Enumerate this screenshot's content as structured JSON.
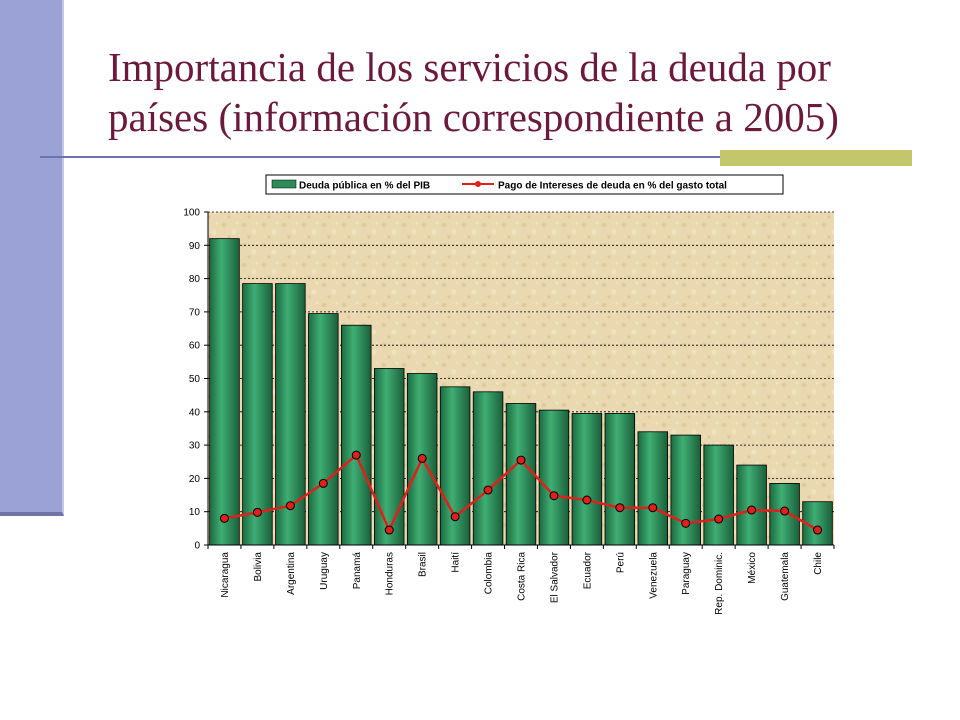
{
  "slide": {
    "title_line1": "Importancia de los servicios de la deuda por",
    "title_line2": "países (información correspondiente a 2005)"
  },
  "colors": {
    "title": "#6b1a3c",
    "left_bar": "#9ba3d6",
    "rule": "#6a73b0",
    "accent": "#c3c66a",
    "bar_fill": "#2e8b57",
    "line": "#e0201a",
    "plot_bg": "#e9d8b0"
  },
  "chart_data": {
    "type": "bar",
    "categories": [
      "Nicaragua",
      "Bolivia",
      "Argentina",
      "Uruguay",
      "Panamá",
      "Honduras",
      "Brasil",
      "Haití",
      "Colombia",
      "Costa Rica",
      "El Salvador",
      "Ecuador",
      "Perú",
      "Venezuela",
      "Paraguay",
      "Rep. Dominic.",
      "México",
      "Guatemala",
      "Chile"
    ],
    "series": [
      {
        "name": "Deuda pública en %  del PIB",
        "kind": "bar",
        "values": [
          92,
          78.5,
          78.5,
          69.5,
          66,
          53,
          51.5,
          47.5,
          46,
          42.5,
          40.5,
          39.5,
          39.5,
          34,
          33,
          30,
          24,
          18.5,
          13
        ]
      },
      {
        "name": "Pago de Intereses de deuda en %  del gasto total",
        "kind": "line",
        "values": [
          8,
          9.8,
          11.8,
          18.5,
          27,
          4.5,
          26,
          8.5,
          16.5,
          25.5,
          14.8,
          13.5,
          11.2,
          11.2,
          6.5,
          7.8,
          10.5,
          10.2,
          4.5
        ]
      }
    ],
    "ylim": [
      0,
      100
    ],
    "yticks": [
      0,
      10,
      20,
      30,
      40,
      50,
      60,
      70,
      80,
      90,
      100
    ],
    "grid": true,
    "legend": "top"
  }
}
